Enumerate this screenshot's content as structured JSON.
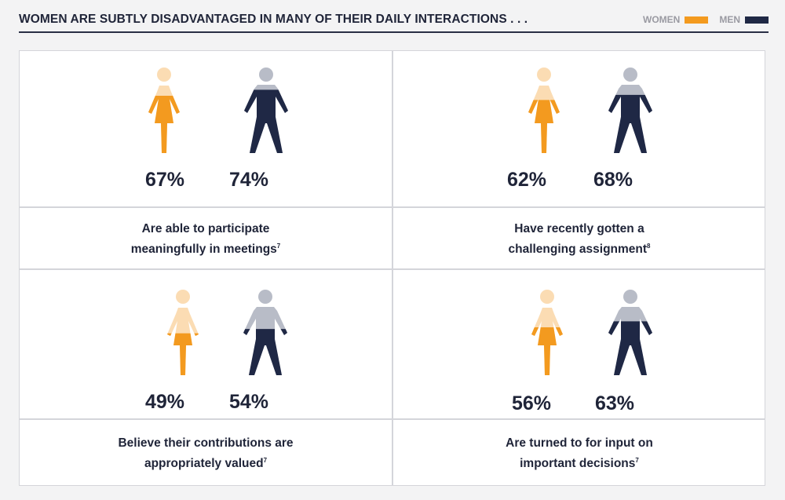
{
  "header": {
    "title": "WOMEN ARE SUBTLY DISADVANTAGED IN MANY OF THEIR DAILY INTERACTIONS . . .",
    "legend_women": "WOMEN",
    "legend_men": "MEN"
  },
  "colors": {
    "women": "#f39a1f",
    "women_light": "#fbdcb3",
    "men": "#1f2845",
    "men_light": "#b8bcc7",
    "text": "#1f2438"
  },
  "chart_data": {
    "type": "pictograph",
    "title": "WOMEN ARE SUBTLY DISADVANTAGED IN MANY OF THEIR DAILY INTERACTIONS . . .",
    "series": [
      "WOMEN",
      "MEN"
    ],
    "items": [
      {
        "label": "Are able to participate meaningfully in meetings",
        "footnote": "7",
        "women_pct": 67,
        "men_pct": 74,
        "women_text": "67%",
        "men_text": "74%"
      },
      {
        "label": "Have recently gotten a challenging assignment",
        "footnote": "8",
        "women_pct": 62,
        "men_pct": 68,
        "women_text": "62%",
        "men_text": "68%"
      },
      {
        "label": "Believe their contributions are appropriately valued",
        "footnote": "7",
        "women_pct": 49,
        "men_pct": 54,
        "women_text": "49%",
        "men_text": "54%"
      },
      {
        "label": "Are turned to for input on important decisions",
        "footnote": "7",
        "women_pct": 56,
        "men_pct": 63,
        "women_text": "56%",
        "men_text": "63%"
      }
    ]
  },
  "captions": [
    {
      "line1": "Are able to participate",
      "line2": "meaningfully in meetings",
      "fn": "7"
    },
    {
      "line1": "Have recently gotten a",
      "line2": "challenging assignment",
      "fn": "8"
    },
    {
      "line1": "Believe their contributions are",
      "line2": "appropriately valued",
      "fn": "7"
    },
    {
      "line1": "Are turned to for input on",
      "line2": "important decisions",
      "fn": "7"
    }
  ]
}
